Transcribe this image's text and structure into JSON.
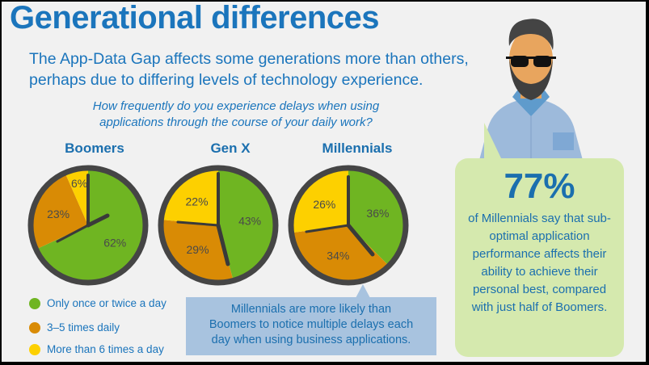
{
  "title": "Generational differences",
  "subtitle_line1": "The App-Data Gap affects some generations more than others,",
  "subtitle_line2": "perhaps due to differing levels of technology experience.",
  "question_line1": "How frequently do you experience delays when using",
  "question_line2": "applications through the course of your daily work?",
  "chart_data": {
    "type": "pie",
    "title": "How frequently do you experience delays when using applications through the course of your daily work?",
    "categories": [
      "Only once or twice a day",
      "3–5 times daily",
      "More than 6 times a day"
    ],
    "colors": [
      "#6fb522",
      "#d98b05",
      "#fdd000"
    ],
    "groups": [
      {
        "name": "Boomers",
        "values": [
          62,
          23,
          6
        ],
        "labels": [
          "62%",
          "23%",
          "6%"
        ]
      },
      {
        "name": "Gen X",
        "values": [
          43,
          29,
          22
        ],
        "labels": [
          "43%",
          "29%",
          "22%"
        ]
      },
      {
        "name": "Millennials",
        "values": [
          36,
          34,
          26
        ],
        "labels": [
          "36%",
          "34%",
          "26%"
        ]
      }
    ],
    "legend": "bottom-left"
  },
  "callout_line1": "Millennials are more likely than",
  "callout_line2": "Boomers to notice multiple delays each",
  "callout_line3": "day when using business applications.",
  "stat": {
    "value": "77%",
    "text": "of Millennials say that sub-optimal application performance affects their ability to achieve their personal best, compared with just half of Boomers."
  }
}
